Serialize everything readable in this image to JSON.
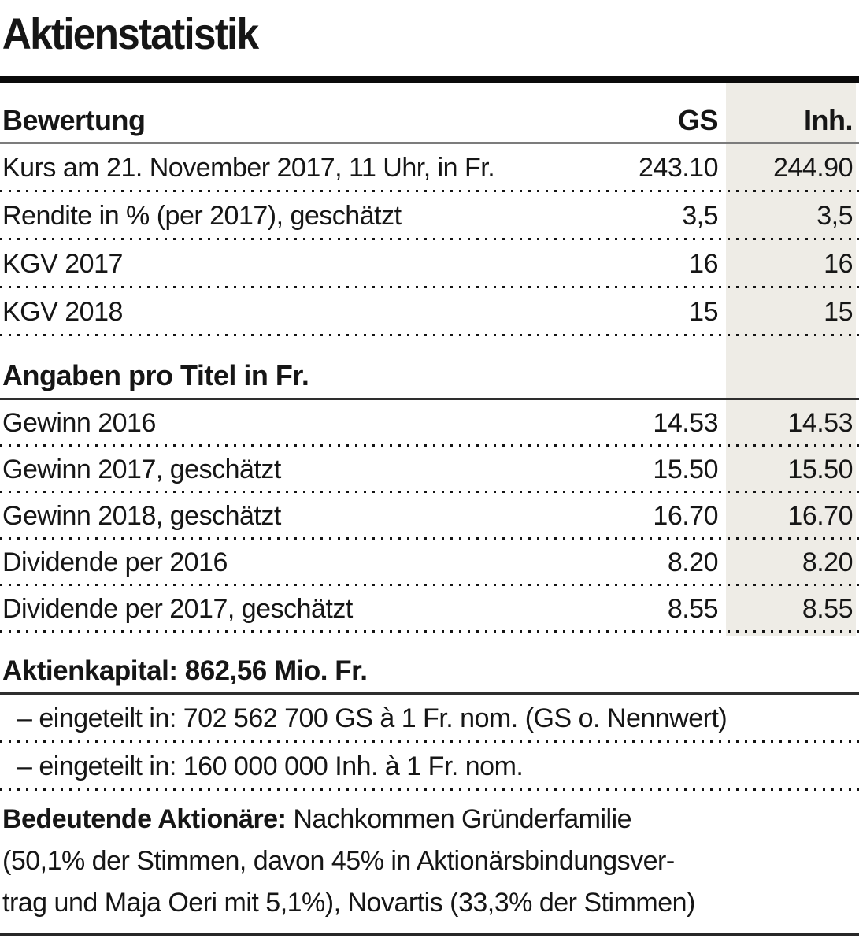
{
  "title": "Aktienstatistik",
  "colors": {
    "shade": "#eeece6",
    "text": "#161616"
  },
  "table": {
    "header": {
      "label": "Bewertung",
      "gs": "GS",
      "inh": "Inh."
    },
    "rows": [
      {
        "label": "Kurs am 21. November 2017, 11 Uhr, in Fr.",
        "gs": "243.10",
        "inh": "244.90"
      },
      {
        "label": "Rendite in % (per 2017), geschätzt",
        "gs": "3,5",
        "inh": "3,5"
      },
      {
        "label": "KGV 2017",
        "gs": "16",
        "inh": "16"
      },
      {
        "label": "KGV 2018",
        "gs": "15",
        "inh": "15"
      }
    ],
    "section2": {
      "header": "Angaben pro Titel in Fr.",
      "rows": [
        {
          "label": "Gewinn 2016",
          "gs": "14.53",
          "inh": "14.53"
        },
        {
          "label": "Gewinn 2017, geschätzt",
          "gs": "15.50",
          "inh": "15.50"
        },
        {
          "label": "Gewinn 2018, geschätzt",
          "gs": "16.70",
          "inh": "16.70"
        },
        {
          "label": "Dividende per 2016",
          "gs": "8.20",
          "inh": "8.20"
        },
        {
          "label": "Dividende per 2017, geschätzt",
          "gs": "8.55",
          "inh": "8.55"
        }
      ]
    }
  },
  "capital": {
    "headline": "Aktienkapital: 862,56 Mio. Fr.",
    "lines": [
      "– eingeteilt in: 702 562 700 GS à 1 Fr. nom. (GS o. Nennwert)",
      "– eingeteilt in: 160 000 000 Inh. à 1 Fr. nom."
    ]
  },
  "shareholders": {
    "label": "Bedeutende Aktionäre:",
    "lines": [
      " Nachkommen Gründerfamilie",
      "(50,1% der Stimmen, davon 45% in Aktionärsbindungsver-",
      "trag und Maja Oeri mit 5,1%), Novartis (33,3% der Stimmen)"
    ]
  }
}
